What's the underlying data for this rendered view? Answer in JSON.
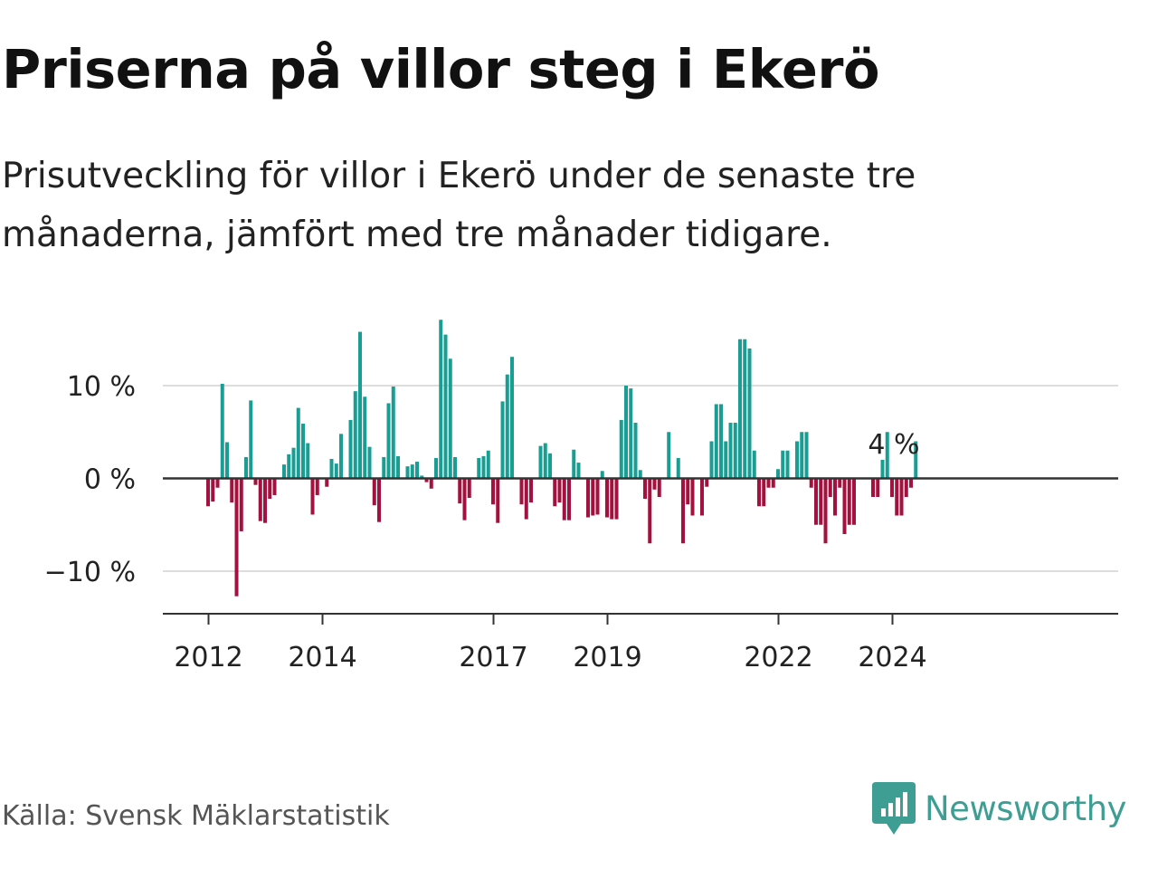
{
  "header": {
    "title": "Priserna på villor steg i Ekerö",
    "subtitle": "Prisutveckling för villor i Ekerö under de senaste tre månaderna, jämfört med tre månader tidigare."
  },
  "footer": {
    "source": "Källa: Svensk Mäklarstatistik",
    "brand": "Newsworthy"
  },
  "colors": {
    "positive": "#1a9e94",
    "negative": "#a3113f",
    "baseline": "#333333",
    "grid": "#dddddd",
    "brand": "#3f9e94"
  },
  "chart_data": {
    "type": "bar",
    "title": "Priserna på villor steg i Ekerö",
    "xlabel": "",
    "ylabel": "",
    "start": "2012-01",
    "frequency": "monthly",
    "ylim": [
      -14.5,
      18
    ],
    "y_ticks": [
      {
        "value": 10,
        "label": "10 %"
      },
      {
        "value": 0,
        "label": "0 %"
      },
      {
        "value": -10,
        "label": "−10 %"
      }
    ],
    "x_ticks": [
      {
        "label": "2012",
        "index": 0
      },
      {
        "label": "2014",
        "index": 24
      },
      {
        "label": "2017",
        "index": 60
      },
      {
        "label": "2019",
        "index": 84
      },
      {
        "label": "2022",
        "index": 120
      },
      {
        "label": "2024",
        "index": 144
      }
    ],
    "annotation": {
      "label": "4 %",
      "index": 144
    },
    "values": [
      -3,
      -2.5,
      -1,
      10.2,
      3.9,
      -2.6,
      -12.7,
      -5.7,
      2.3,
      8.4,
      -0.7,
      -4.6,
      -4.8,
      -2.2,
      -1.8,
      0,
      1.5,
      2.6,
      3.3,
      7.6,
      5.9,
      3.8,
      -3.9,
      -1.8,
      0,
      -0.9,
      2.1,
      1.6,
      4.8,
      0,
      6.3,
      9.4,
      15.8,
      8.8,
      3.4,
      -2.9,
      -4.7,
      2.3,
      8.1,
      9.9,
      2.4,
      0,
      1.3,
      1.5,
      1.8,
      0.3,
      -0.4,
      -1.1,
      2.2,
      17.1,
      15.5,
      12.9,
      2.3,
      -2.7,
      -4.5,
      -2.1,
      0,
      2.2,
      2.4,
      3.0,
      -2.8,
      -4.8,
      8.3,
      11.2,
      13.1,
      0,
      -2.8,
      -4.4,
      -2.6,
      0,
      3.5,
      3.8,
      2.7,
      -3.0,
      -2.6,
      -4.5,
      -4.5,
      3.1,
      1.7,
      0,
      -4.2,
      -4.0,
      -3.9,
      0.8,
      -4.2,
      -4.4,
      -4.4,
      6.3,
      10.0,
      9.7,
      6.0,
      0.9,
      -2.2,
      -7.0,
      -1.2,
      -2.0,
      0,
      5.0,
      0,
      2.2,
      -7.0,
      -2.8,
      -4.0,
      0,
      -4.0,
      -0.9,
      4.0,
      8.0,
      8.0,
      4.0,
      6.0,
      6.0,
      15.0,
      15.0,
      14.0,
      3.0,
      -3.0,
      -3.0,
      -1.0,
      -1.0,
      1.0,
      3.0,
      3.0,
      0,
      4.0,
      5.0,
      5.0,
      -1.0,
      -5.0,
      -5.0,
      -7.0,
      -2.0,
      -4.0,
      -1.0,
      -6.0,
      -5.0,
      -5.0,
      0,
      0,
      0,
      -2.0,
      -2.0,
      2.0,
      5.0,
      -2.0,
      -4.0,
      -4.0,
      -2.0,
      -1.0,
      4.0
    ]
  }
}
